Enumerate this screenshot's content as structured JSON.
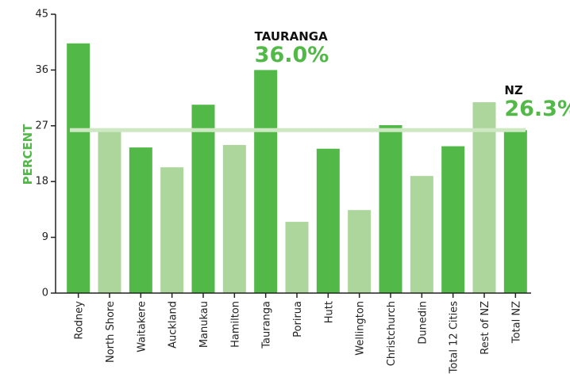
{
  "chart_data": {
    "type": "bar",
    "y_label": "PERCENT",
    "categories": [
      "Rodney",
      "North Shore",
      "Waitakere",
      "Auckland",
      "Manukau",
      "Hamilton",
      "Tauranga",
      "Porirua",
      "Hutt",
      "Wellington",
      "Christchurch",
      "Dunedin",
      "Total 12 Cities",
      "Rest of NZ",
      "Total NZ"
    ],
    "values": [
      40.3,
      26.6,
      23.5,
      20.3,
      30.4,
      23.9,
      36.0,
      11.5,
      23.3,
      13.4,
      27.1,
      18.9,
      23.7,
      30.8,
      26.3
    ],
    "colors": [
      "#52b848",
      "#acd69c",
      "#52b848",
      "#acd69c",
      "#52b848",
      "#acd69c",
      "#52b848",
      "#acd69c",
      "#52b848",
      "#acd69c",
      "#52b848",
      "#acd69c",
      "#52b848",
      "#acd69c",
      "#52b848"
    ],
    "ylim": [
      0,
      45
    ],
    "yticks": [
      0,
      9,
      18,
      27,
      36,
      45
    ],
    "reference_line": 26.3,
    "reference_color": "#cfe8c4",
    "annotations": [
      {
        "title": "TAURANGA",
        "text": "36.0%",
        "category": 6
      },
      {
        "title": "NZ",
        "text": "26.3%",
        "category": 14
      }
    ]
  }
}
